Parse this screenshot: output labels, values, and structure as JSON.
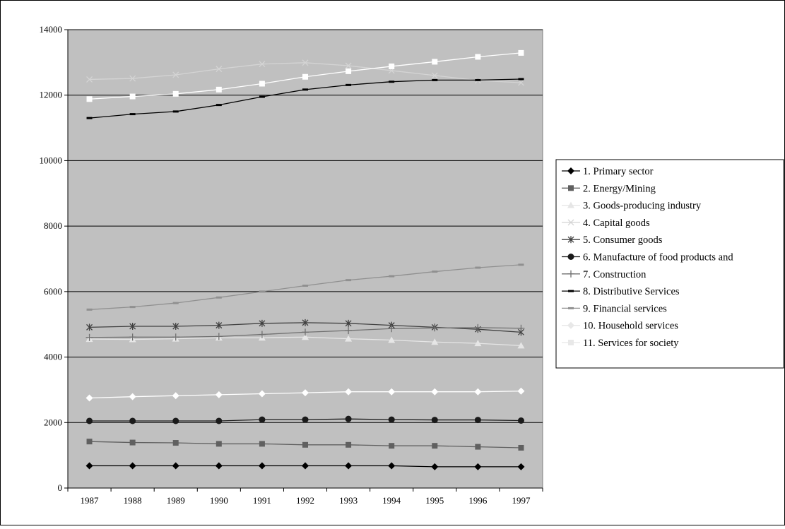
{
  "chart_data": {
    "type": "line",
    "title": "",
    "xlabel": "",
    "ylabel": "",
    "x": [
      1987,
      1988,
      1989,
      1990,
      1991,
      1992,
      1993,
      1994,
      1995,
      1996,
      1997
    ],
    "x_tick_labels": [
      "1987",
      "1988",
      "1989",
      "1990",
      "1991",
      "1992",
      "1993",
      "1994",
      "1995",
      "1996",
      "1997"
    ],
    "ylim": [
      0,
      14000
    ],
    "y_ticks": [
      0,
      2000,
      4000,
      6000,
      8000,
      10000,
      12000,
      14000
    ],
    "y_tick_labels": [
      "0",
      "2000",
      "4000",
      "6000",
      "8000",
      "10000",
      "12000",
      "14000"
    ],
    "grid": "horizontal",
    "plot_background": "#c0c0c0",
    "legend_position": "right",
    "series": [
      {
        "name": "1. Primary sector",
        "marker": "diamond",
        "color": "#000000",
        "values": [
          680,
          680,
          680,
          680,
          680,
          680,
          680,
          680,
          650,
          650,
          650
        ]
      },
      {
        "name": "2. Energy/Mining",
        "marker": "square",
        "color": "#606060",
        "values": [
          1420,
          1390,
          1380,
          1350,
          1350,
          1320,
          1320,
          1290,
          1290,
          1260,
          1230
        ]
      },
      {
        "name": "3. Goods-producing industry",
        "marker": "triangle",
        "color": "#e6e6e6",
        "values": [
          4550,
          4540,
          4560,
          4590,
          4590,
          4610,
          4560,
          4520,
          4460,
          4420,
          4350
        ]
      },
      {
        "name": "4. Capital goods",
        "marker": "x",
        "color": "#d4d4d4",
        "values": [
          12480,
          12510,
          12620,
          12800,
          12950,
          12990,
          12900,
          12750,
          12600,
          12450,
          12380
        ]
      },
      {
        "name": "5. Consumer goods",
        "marker": "star",
        "color": "#404040",
        "values": [
          4910,
          4940,
          4940,
          4970,
          5030,
          5050,
          5030,
          4970,
          4910,
          4850,
          4760
        ]
      },
      {
        "name": "6. Manufacture of food products and",
        "marker": "circle",
        "color": "#1a1a1a",
        "values": [
          2050,
          2050,
          2050,
          2050,
          2090,
          2090,
          2110,
          2090,
          2080,
          2080,
          2060
        ]
      },
      {
        "name": "7. Construction",
        "marker": "plus",
        "color": "#707070",
        "values": [
          4600,
          4610,
          4610,
          4630,
          4690,
          4760,
          4810,
          4870,
          4890,
          4900,
          4880
        ]
      },
      {
        "name": "8. Distributive Services",
        "marker": "dash",
        "color": "#000000",
        "values": [
          11300,
          11420,
          11500,
          11700,
          11950,
          12170,
          12310,
          12410,
          12460,
          12460,
          12490
        ]
      },
      {
        "name": "9. Financial services",
        "marker": "dash",
        "color": "#909090",
        "values": [
          5450,
          5530,
          5650,
          5820,
          6000,
          6180,
          6350,
          6470,
          6610,
          6730,
          6820
        ]
      },
      {
        "name": "10. Household services",
        "marker": "diamond",
        "color": "#ffffff",
        "values": [
          2750,
          2790,
          2820,
          2850,
          2880,
          2910,
          2940,
          2940,
          2940,
          2940,
          2960
        ]
      },
      {
        "name": "11. Services for society",
        "marker": "square",
        "color": "#ffffff",
        "values": [
          11880,
          11960,
          12040,
          12170,
          12350,
          12560,
          12730,
          12880,
          13020,
          13170,
          13290
        ]
      }
    ]
  }
}
